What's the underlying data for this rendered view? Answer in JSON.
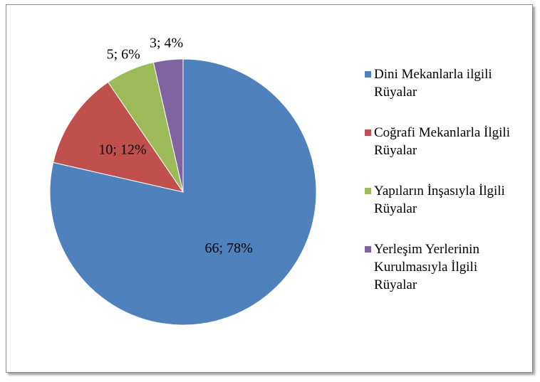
{
  "chart_data": {
    "type": "pie",
    "categories": [
      "Dini Mekanlarla ilgili Rüyalar",
      "Coğrafi Mekanlarla İlgili Rüyalar",
      "Yapıların İnşasıyla İlgili Rüyalar",
      "Yerleşim Yerlerinin Kurulmasıyla İlgili Rüyalar"
    ],
    "values": [
      66,
      10,
      5,
      3
    ],
    "value_labels": [
      "66; 78%",
      "10; 12%",
      "5; 6%",
      "3; 4%"
    ],
    "colors": [
      "#4f81bd",
      "#c0504d",
      "#9bbb59",
      "#8064a2"
    ],
    "legend": "right"
  }
}
